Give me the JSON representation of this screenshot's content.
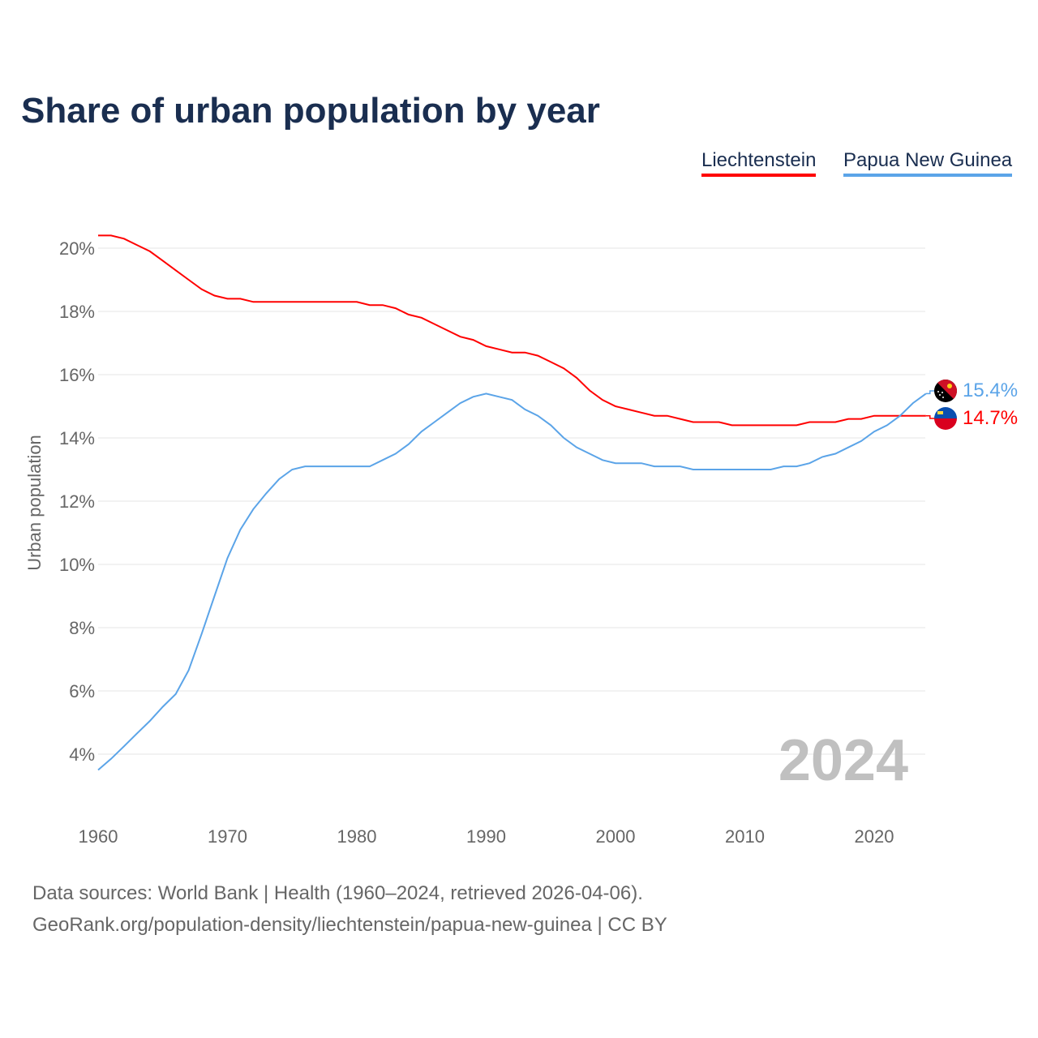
{
  "title": "Share of urban population by year",
  "footer": {
    "line1": "Data sources: World Bank | Health (1960–2024, retrieved 2026-04-06).",
    "line2": "GeoRank.org/population-density/liechtenstein/papua-new-guinea | CC BY"
  },
  "chart_data": {
    "type": "line",
    "title": "Share of urban population by year",
    "ylabel": "Urban population",
    "xlabel": "",
    "ylim": [
      2,
      21
    ],
    "xlim": [
      1960,
      2024
    ],
    "yticks": [
      4,
      6,
      8,
      10,
      12,
      14,
      16,
      18,
      20
    ],
    "xticks": [
      1960,
      1970,
      1980,
      1990,
      2000,
      2010,
      2020
    ],
    "grid": true,
    "legend": "top-right",
    "watermark": "2024",
    "x_start": 1960,
    "series": [
      {
        "name": "Liechtenstein",
        "color": "#ff0000",
        "end_label": "14.7%",
        "flag": "liechtenstein-flag",
        "values": [
          20.4,
          20.4,
          20.3,
          20.1,
          19.9,
          19.6,
          19.3,
          19.0,
          18.7,
          18.5,
          18.4,
          18.4,
          18.3,
          18.3,
          18.3,
          18.3,
          18.3,
          18.3,
          18.3,
          18.3,
          18.3,
          18.2,
          18.2,
          18.1,
          17.9,
          17.8,
          17.6,
          17.4,
          17.2,
          17.1,
          16.9,
          16.8,
          16.7,
          16.7,
          16.6,
          16.4,
          16.2,
          15.9,
          15.5,
          15.2,
          15.0,
          14.9,
          14.8,
          14.7,
          14.7,
          14.6,
          14.5,
          14.5,
          14.5,
          14.4,
          14.4,
          14.4,
          14.4,
          14.4,
          14.4,
          14.5,
          14.5,
          14.5,
          14.6,
          14.6,
          14.7,
          14.7,
          14.7,
          14.7,
          14.7
        ]
      },
      {
        "name": "Papua New Guinea",
        "color": "#5ba4e8",
        "end_label": "15.4%",
        "flag": "papua-new-guinea-flag",
        "values": [
          3.5,
          3.85,
          4.25,
          4.65,
          5.05,
          5.5,
          5.9,
          6.65,
          7.8,
          9.0,
          10.2,
          11.1,
          11.75,
          12.25,
          12.7,
          13.0,
          13.1,
          13.1,
          13.1,
          13.1,
          13.1,
          13.1,
          13.3,
          13.5,
          13.8,
          14.2,
          14.5,
          14.8,
          15.1,
          15.3,
          15.4,
          15.3,
          15.2,
          14.9,
          14.7,
          14.4,
          14.0,
          13.7,
          13.5,
          13.3,
          13.2,
          13.2,
          13.2,
          13.1,
          13.1,
          13.1,
          13.0,
          13.0,
          13.0,
          13.0,
          13.0,
          13.0,
          13.0,
          13.1,
          13.1,
          13.2,
          13.4,
          13.5,
          13.7,
          13.9,
          14.2,
          14.4,
          14.7,
          15.1,
          15.4
        ]
      }
    ]
  }
}
